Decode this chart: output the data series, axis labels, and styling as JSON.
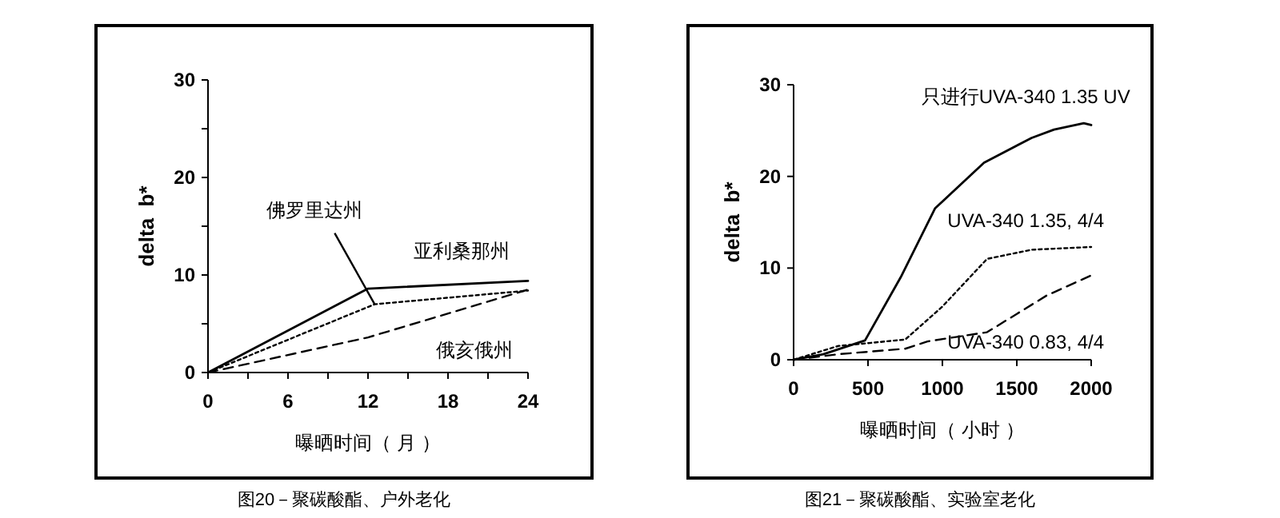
{
  "chart_data": [
    {
      "type": "line",
      "title": "图20－聚碳酸酯、户外老化",
      "xlabel": "曝晒时间（ 月 ）",
      "ylabel": "delta  b*",
      "xlim": [
        0,
        24
      ],
      "ylim": [
        0,
        30
      ],
      "xticks": [
        0,
        {
          "value": 3,
          "label": null
        },
        6,
        {
          "value": 9,
          "label": null
        },
        12,
        {
          "value": 15,
          "label": null
        },
        18,
        {
          "value": 21,
          "label": null
        },
        24
      ],
      "yticks": [
        0,
        {
          "value": 5,
          "label": null
        },
        10,
        {
          "value": 15,
          "label": null
        },
        20,
        {
          "value": 25,
          "label": null
        },
        30
      ],
      "marker": "none",
      "series": [
        {
          "name": "亚利桑那州",
          "color": "#000000",
          "line_style": "solid",
          "x": [
            0,
            12,
            24
          ],
          "values": [
            0,
            8.6,
            9.4
          ]
        },
        {
          "name": "佛罗里达州",
          "color": "#000000",
          "line_style": "dotted",
          "x": [
            0,
            12.5,
            24
          ],
          "values": [
            0,
            7,
            8.4
          ]
        },
        {
          "name": "俄亥俄州",
          "color": "#000000",
          "line_style": "dashed",
          "x": [
            0,
            12,
            24
          ],
          "values": [
            0,
            3.6,
            8.5
          ]
        }
      ]
    },
    {
      "type": "line",
      "title": "图21－聚碳酸酯、实验室老化",
      "xlabel": "曝晒时间（ 小时 ）",
      "ylabel": "delta  b*",
      "xlim": [
        0,
        2000
      ],
      "ylim": [
        0,
        30
      ],
      "xticks": [
        0,
        500,
        1000,
        1500,
        2000
      ],
      "yticks": [
        0,
        10,
        20,
        30
      ],
      "marker": "none",
      "series": [
        {
          "name": "只进行UVA-340 1.35 UV",
          "color": "#000000",
          "line_style": "solid",
          "x": [
            0,
            200,
            480,
            720,
            950,
            1280,
            1600,
            1750,
            1950,
            2000
          ],
          "values": [
            0,
            0.6,
            2.1,
            9,
            16.5,
            21.5,
            24.2,
            25.1,
            25.8,
            25.6
          ]
        },
        {
          "name": "UVA-340  1.35,  4/4",
          "color": "#000000",
          "line_style": "dotted",
          "x": [
            0,
            300,
            750,
            1000,
            1300,
            1600,
            2000
          ],
          "values": [
            0,
            1.5,
            2.2,
            5.8,
            11,
            12,
            12.3
          ]
        },
        {
          "name": "UVA-340  0.83,  4/4",
          "color": "#000000",
          "line_style": "dashed",
          "x": [
            0,
            300,
            750,
            900,
            1100,
            1300,
            1500,
            1700,
            2000
          ],
          "values": [
            0,
            0.6,
            1.2,
            2,
            2.5,
            3,
            5,
            7,
            9.2
          ]
        }
      ]
    }
  ]
}
